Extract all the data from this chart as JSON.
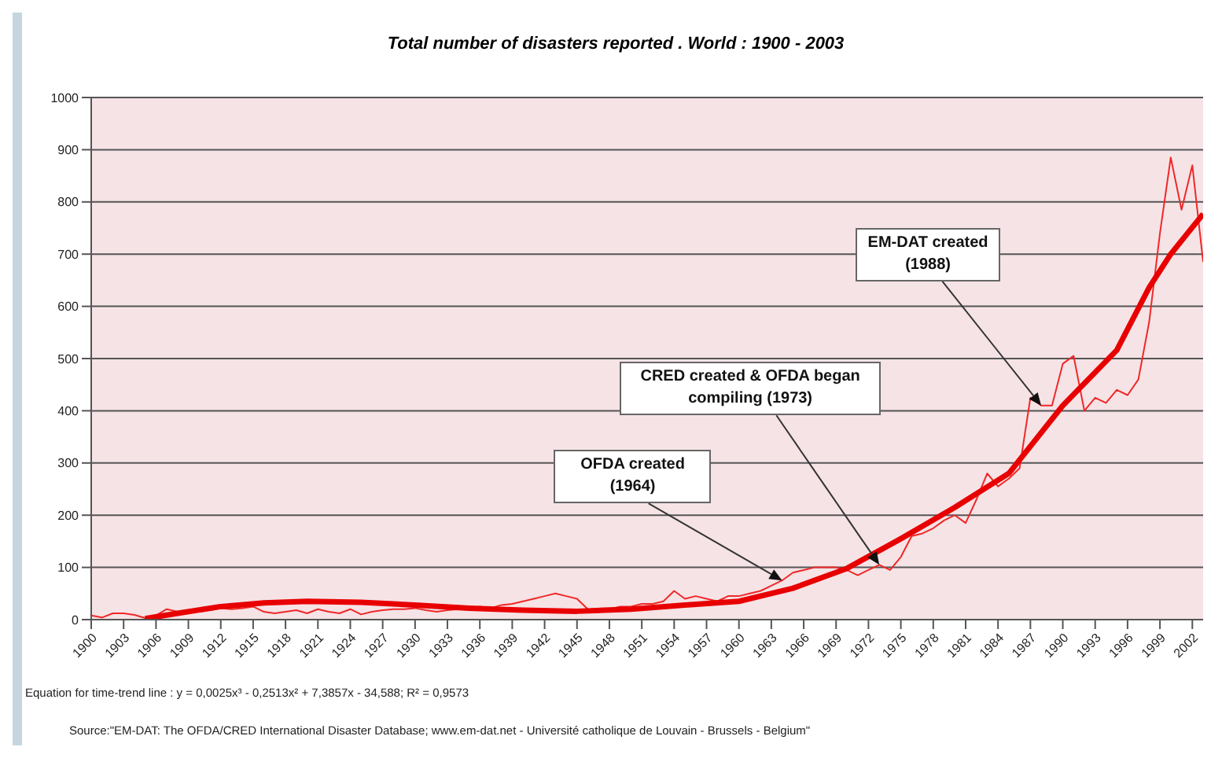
{
  "chart_data": {
    "type": "line",
    "title": "Total number of disasters reported . World : 1900 - 2003",
    "xlim": [
      1900,
      2003
    ],
    "xticks": [
      1900,
      1903,
      1906,
      1909,
      1912,
      1915,
      1918,
      1921,
      1924,
      1927,
      1930,
      1933,
      1936,
      1939,
      1942,
      1945,
      1948,
      1951,
      1954,
      1957,
      1960,
      1963,
      1966,
      1969,
      1972,
      1975,
      1978,
      1981,
      1984,
      1987,
      1990,
      1993,
      1996,
      1999,
      2002
    ],
    "ylim": [
      0,
      1000
    ],
    "yticks": [
      0,
      100,
      200,
      300,
      400,
      500,
      600,
      700,
      800,
      900,
      1000
    ],
    "grid": "y",
    "series": [
      {
        "color": "#f02828",
        "x": [
          1900,
          1901,
          1902,
          1903,
          1904,
          1905,
          1906,
          1907,
          1908,
          1909,
          1910,
          1911,
          1912,
          1913,
          1914,
          1915,
          1916,
          1917,
          1918,
          1919,
          1920,
          1921,
          1922,
          1923,
          1924,
          1925,
          1926,
          1927,
          1928,
          1929,
          1930,
          1931,
          1932,
          1933,
          1934,
          1935,
          1936,
          1937,
          1938,
          1939,
          1940,
          1941,
          1942,
          1943,
          1944,
          1945,
          1946,
          1947,
          1948,
          1949,
          1950,
          1951,
          1952,
          1953,
          1954,
          1955,
          1956,
          1957,
          1958,
          1959,
          1960,
          1961,
          1962,
          1963,
          1964,
          1965,
          1966,
          1967,
          1968,
          1969,
          1970,
          1971,
          1972,
          1973,
          1974,
          1975,
          1976,
          1977,
          1978,
          1979,
          1980,
          1981,
          1982,
          1983,
          1984,
          1985,
          1986,
          1987,
          1988,
          1989,
          1990,
          1991,
          1992,
          1993,
          1994,
          1995,
          1996,
          1997,
          1998,
          1999,
          2000,
          2001,
          2002,
          2003
        ],
        "values": [
          8,
          4,
          12,
          12,
          9,
          3,
          8,
          20,
          15,
          12,
          20,
          18,
          22,
          20,
          22,
          25,
          15,
          12,
          15,
          18,
          12,
          20,
          15,
          12,
          20,
          10,
          15,
          18,
          20,
          20,
          22,
          18,
          15,
          18,
          20,
          22,
          25,
          22,
          28,
          30,
          35,
          40,
          45,
          50,
          45,
          40,
          20,
          15,
          20,
          25,
          25,
          30,
          30,
          35,
          55,
          40,
          45,
          40,
          35,
          45,
          45,
          50,
          55,
          65,
          75,
          90,
          95,
          100,
          100,
          100,
          95,
          85,
          95,
          105,
          95,
          120,
          160,
          165,
          175,
          190,
          200,
          185,
          230,
          280,
          255,
          270,
          290,
          425,
          410,
          410,
          490,
          505,
          400,
          425,
          415,
          440,
          430,
          460,
          570,
          740,
          885,
          785,
          870,
          685
        ]
      },
      {
        "type": "line",
        "color": "#e80000",
        "x": [
          1905,
          1908,
          1912,
          1916,
          1920,
          1925,
          1930,
          1935,
          1940,
          1945,
          1950,
          1955,
          1960,
          1965,
          1970,
          1975,
          1980,
          1985,
          1990,
          1995,
          1998,
          2000,
          2003
        ],
        "values": [
          2,
          12,
          25,
          32,
          35,
          33,
          28,
          22,
          18,
          16,
          20,
          28,
          35,
          60,
          98,
          155,
          215,
          280,
          410,
          516,
          636,
          700,
          777
        ]
      }
    ],
    "annotations": [
      {
        "text": "OFDA created (1964)",
        "x": 1964,
        "y": 75
      },
      {
        "text": "CRED created & OFDA began compiling (1973)",
        "x": 1973,
        "y": 105
      },
      {
        "text": "EM-DAT created (1988)",
        "x": 1988,
        "y": 410
      },
      "Equation for time-trend line : y = 0,0025x³ - 0,2513x² + 7,3857x - 34,588;   R² = 0,9573",
      "Source:\"EM-DAT: The OFDA/CRED International Disaster Database; www.em-dat.net - Université catholique de Louvain - Brussels - Belgium\""
    ]
  }
}
